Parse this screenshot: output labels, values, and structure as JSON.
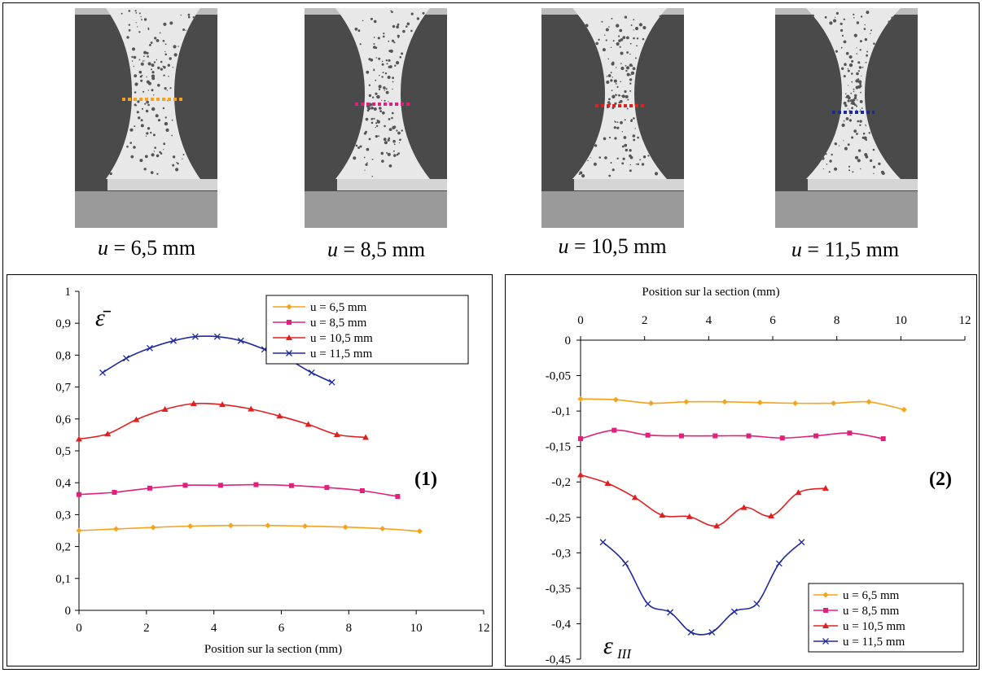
{
  "captions": [
    {
      "var": "u",
      "text": " = 6,5 mm"
    },
    {
      "var": "u",
      "text": " = 8,5 mm"
    },
    {
      "var": "u",
      "text": " = 10,5 mm"
    },
    {
      "var": "u",
      "text": " = 11,5 mm"
    }
  ],
  "photos": [
    {
      "marker_color": "#f5a31a"
    },
    {
      "marker_color": "#e0207a"
    },
    {
      "marker_color": "#e02020"
    },
    {
      "marker_color": "#1f2a9a"
    }
  ],
  "colors": {
    "u65": "#f5a31a",
    "u85": "#e0207a",
    "u105": "#e02020",
    "u115": "#1f2a9a"
  },
  "chart_data": [
    {
      "type": "line",
      "panel_label": "(1)",
      "y_symbol": "ε̄",
      "xlabel": "Position sur la section (mm)",
      "ylabel": "",
      "xlim": [
        0,
        12
      ],
      "ylim": [
        0,
        1
      ],
      "x_ticks": [
        "0",
        "2",
        "4",
        "6",
        "8",
        "10",
        "12"
      ],
      "y_ticks": [
        "0",
        "0,1",
        "0,2",
        "0,3",
        "0,4",
        "0,5",
        "0,6",
        "0,7",
        "0,8",
        "0,9",
        "1"
      ],
      "x_axis_position": "bottom",
      "legend_position": "top-right",
      "series": [
        {
          "name": "u = 6,5 mm",
          "marker": "diamond",
          "x": [
            0,
            1.1,
            2.2,
            3.3,
            4.5,
            5.6,
            6.7,
            7.9,
            9.0,
            10.1
          ],
          "y": [
            0.25,
            0.255,
            0.26,
            0.264,
            0.266,
            0.266,
            0.264,
            0.261,
            0.256,
            0.248
          ]
        },
        {
          "name": "u = 8,5 mm",
          "marker": "square",
          "x": [
            0,
            1.05,
            2.1,
            3.15,
            4.2,
            5.25,
            6.3,
            7.35,
            8.4,
            9.45
          ],
          "y": [
            0.363,
            0.37,
            0.383,
            0.392,
            0.392,
            0.394,
            0.391,
            0.385,
            0.375,
            0.357
          ]
        },
        {
          "name": "u = 10,5 mm",
          "marker": "triangle",
          "x": [
            0,
            0.85,
            1.7,
            2.55,
            3.4,
            4.25,
            5.1,
            5.95,
            6.8,
            7.65,
            8.5
          ],
          "y": [
            0.537,
            0.553,
            0.598,
            0.63,
            0.648,
            0.645,
            0.631,
            0.609,
            0.583,
            0.551,
            0.542
          ]
        },
        {
          "name": "u = 11,5 mm",
          "marker": "x",
          "x": [
            0.7,
            1.4,
            2.1,
            2.8,
            3.45,
            4.1,
            4.8,
            5.5,
            6.2,
            6.9,
            7.5
          ],
          "y": [
            0.745,
            0.79,
            0.822,
            0.845,
            0.858,
            0.858,
            0.845,
            0.818,
            0.787,
            0.745,
            0.715
          ]
        }
      ]
    },
    {
      "type": "line",
      "panel_label": "(2)",
      "y_symbol": "ε",
      "y_symbol_sub": "III",
      "xlabel": "Position sur la section (mm)",
      "ylabel": "",
      "xlim": [
        0,
        12
      ],
      "ylim": [
        -0.45,
        0
      ],
      "x_ticks": [
        "0",
        "2",
        "4",
        "6",
        "8",
        "10",
        "12"
      ],
      "y_ticks": [
        "0",
        "-0,05",
        "-0,1",
        "-0,15",
        "-0,2",
        "-0,25",
        "-0,3",
        "-0,35",
        "-0,4",
        "-0,45"
      ],
      "x_axis_position": "top",
      "legend_position": "bottom-right",
      "series": [
        {
          "name": "u = 6,5 mm",
          "marker": "diamond",
          "x": [
            0,
            1.1,
            2.2,
            3.3,
            4.5,
            5.6,
            6.7,
            7.9,
            9.0,
            10.1
          ],
          "y": [
            -0.083,
            -0.084,
            -0.089,
            -0.087,
            -0.087,
            -0.088,
            -0.089,
            -0.089,
            -0.087,
            -0.098
          ]
        },
        {
          "name": "u = 8,5 mm",
          "marker": "square",
          "x": [
            0,
            1.05,
            2.1,
            3.15,
            4.2,
            5.25,
            6.3,
            7.35,
            8.4,
            9.45
          ],
          "y": [
            -0.139,
            -0.127,
            -0.134,
            -0.135,
            -0.135,
            -0.135,
            -0.138,
            -0.135,
            -0.131,
            -0.139
          ]
        },
        {
          "name": "u = 10,5 mm",
          "marker": "triangle",
          "x": [
            0,
            0.85,
            1.7,
            2.55,
            3.4,
            4.25,
            5.1,
            5.95,
            6.8,
            7.65
          ],
          "y": [
            -0.19,
            -0.202,
            -0.222,
            -0.247,
            -0.249,
            -0.262,
            -0.236,
            -0.248,
            -0.215,
            -0.209
          ]
        },
        {
          "name": "u = 11,5 mm",
          "marker": "x",
          "x": [
            0.7,
            1.4,
            2.1,
            2.8,
            3.45,
            4.1,
            4.8,
            5.5,
            6.2,
            6.9
          ],
          "y": [
            -0.285,
            -0.315,
            -0.372,
            -0.384,
            -0.412,
            -0.412,
            -0.383,
            -0.372,
            -0.315,
            -0.285
          ]
        }
      ]
    }
  ]
}
